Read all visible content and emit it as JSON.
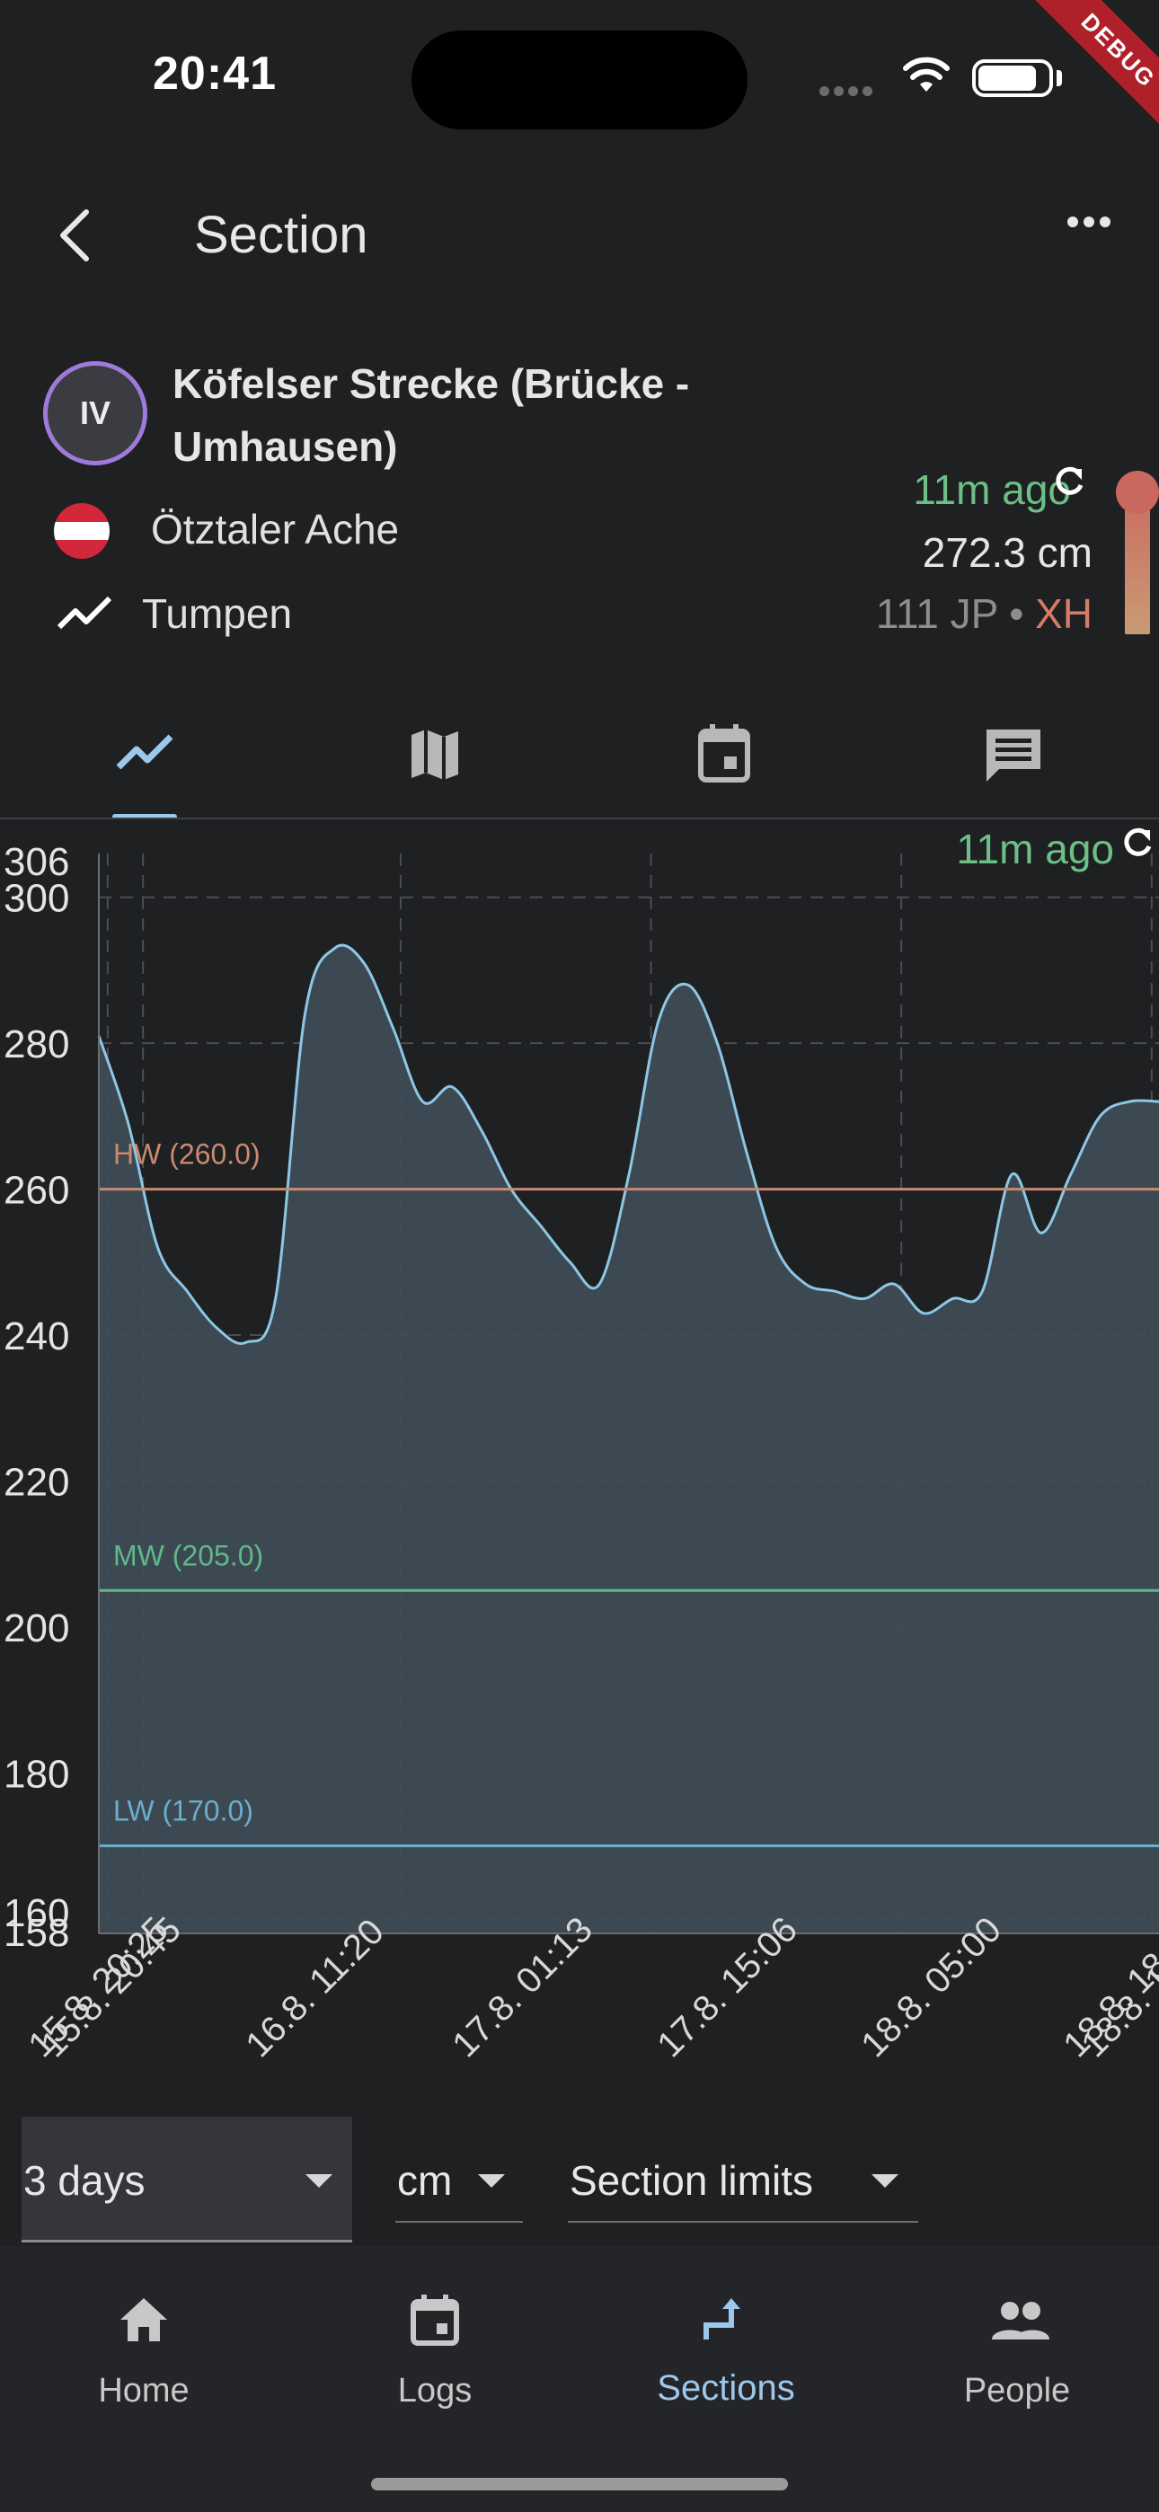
{
  "status_bar": {
    "time": "20:41"
  },
  "debug_banner": "DEBUG",
  "app_bar": {
    "title": "Section"
  },
  "section": {
    "grade": "IV",
    "name": "Köfelser Strecke (Brücke - Umhausen)",
    "river": "Ötztaler Ache",
    "gauge": "Tumpen",
    "updated": "11m ago",
    "level": "272.3 cm",
    "level_grade_prefix": "111 JP • ",
    "level_grade_xh": "XH",
    "level_fraction": 0.95
  },
  "tabs": [
    "chart-icon",
    "map-icon",
    "calendar-icon",
    "comment-icon"
  ],
  "colors": {
    "accent": "#9cc8ec",
    "green": "#6dbf86",
    "hw": "#c98a70",
    "mw": "#5fb88a",
    "lw": "#6aaecc",
    "line": "#8ec6e6",
    "fill": "#3f4c55"
  },
  "chart_data": {
    "type": "area",
    "updated_label": "11m ago",
    "ylim": [
      158,
      306
    ],
    "y_ticks": [
      "306",
      "300",
      "280",
      "260",
      "240",
      "220",
      "200",
      "180",
      "160",
      "158"
    ],
    "x_tick_labels": [
      "15.8. 20:25",
      "15.8. 20:45",
      "16.8. 11:20",
      "17.8. 01:13",
      "17.8. 15:06",
      "18.8. 05:00",
      "18.8. 18:",
      "18.8. 1"
    ],
    "limits": [
      {
        "label": "HW (260.0)",
        "value": 260
      },
      {
        "label": "MW (205.0)",
        "value": 205
      },
      {
        "label": "LW (170.0)",
        "value": 170
      }
    ],
    "series": [
      {
        "x": [
          0,
          2,
          4,
          6,
          8,
          10,
          12,
          14,
          16,
          18,
          20,
          22,
          24,
          26,
          28,
          30,
          32,
          34,
          36,
          38,
          40,
          42,
          44,
          46,
          48,
          50,
          52,
          54,
          56,
          58,
          60,
          62,
          64,
          66,
          68,
          70,
          72
        ],
        "y": [
          281,
          269,
          252,
          246,
          241,
          239,
          245,
          284,
          293,
          291,
          282,
          272,
          274,
          268,
          260,
          255,
          250,
          247,
          262,
          283,
          288,
          280,
          265,
          252,
          247,
          246,
          245,
          247,
          243,
          245,
          246,
          262,
          254,
          262,
          270,
          272,
          272
        ]
      }
    ]
  },
  "controls": {
    "range": "3 days",
    "unit": "cm",
    "limits": "Section limits"
  },
  "bottom_nav": [
    {
      "label": "Home",
      "icon": "home-icon"
    },
    {
      "label": "Logs",
      "icon": "logs-icon"
    },
    {
      "label": "Sections",
      "icon": "sections-icon"
    },
    {
      "label": "People",
      "icon": "people-icon"
    }
  ]
}
